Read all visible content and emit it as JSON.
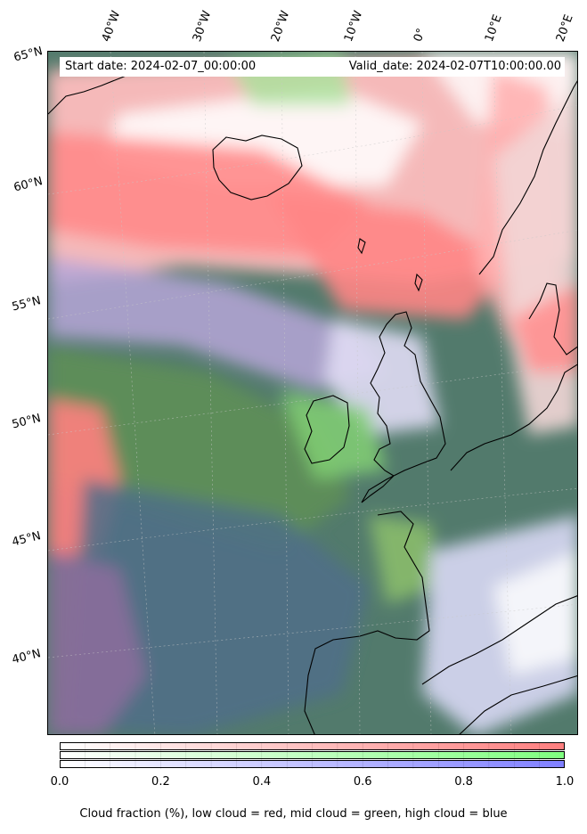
{
  "info": {
    "start": "Start date: 2024-02-07_00:00:00",
    "valid": "Valid_date: 2024-02-07T10:00:00.00"
  },
  "longitude_labels": [
    "40°W",
    "30°W",
    "20°W",
    "10°W",
    "0°",
    "10°E",
    "20°E"
  ],
  "latitude_labels": [
    "65°N",
    "60°N",
    "55°N",
    "50°N",
    "45°N",
    "40°N"
  ],
  "colorbar": {
    "ticks": [
      "0.0",
      "0.2",
      "0.4",
      "0.6",
      "0.8",
      "1.0"
    ],
    "range": [
      0,
      1
    ],
    "rows": [
      "low",
      "mid",
      "high"
    ],
    "colors": {
      "low": "#ff7f7f",
      "mid": "#7fff7f",
      "high": "#7f7fff"
    }
  },
  "caption": "Cloud fraction (%), low cloud = red, mid cloud = green, high cloud = blue"
}
